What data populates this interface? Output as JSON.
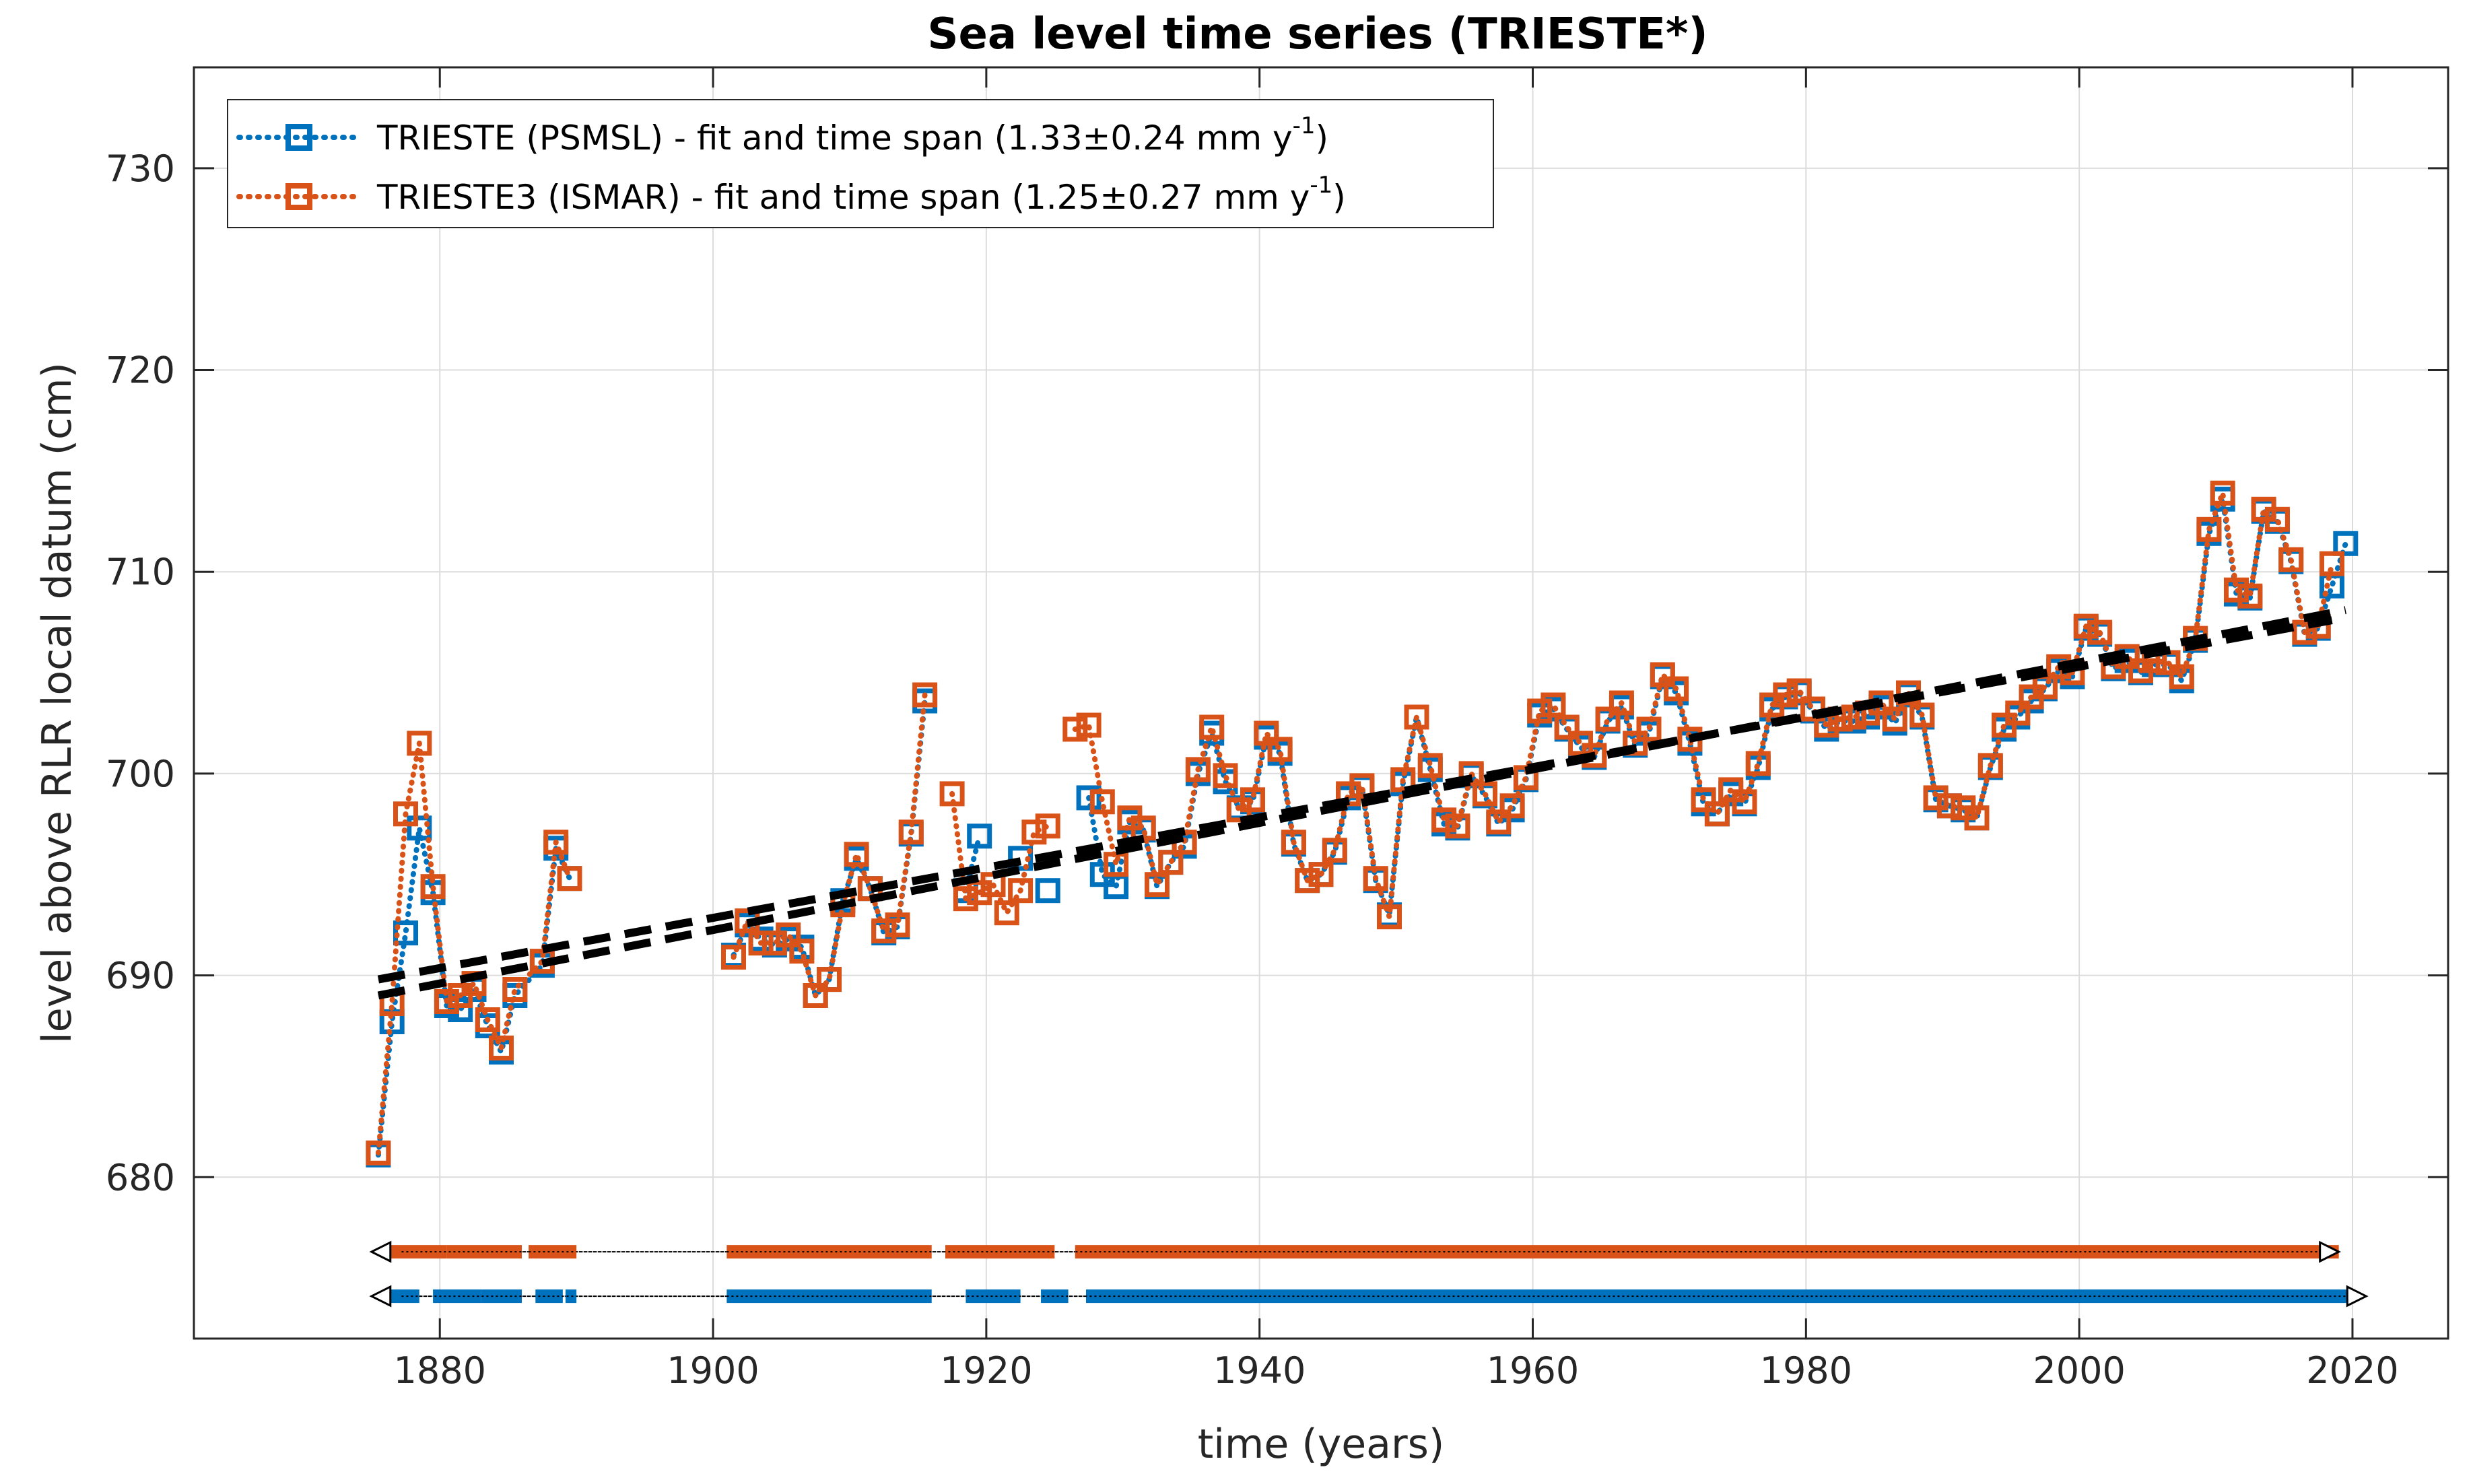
{
  "chart_data": {
    "type": "line",
    "title": "Sea level time series (TRIESTE*)",
    "xlabel": "time (years)",
    "ylabel": "level above RLR local datum (cm)",
    "xlim": [
      1862,
      2027
    ],
    "ylim": [
      672,
      735
    ],
    "xticks": [
      1880,
      1900,
      1920,
      1940,
      1960,
      1980,
      2000,
      2020
    ],
    "yticks": [
      680,
      690,
      700,
      710,
      720,
      730
    ],
    "grid": true,
    "legend_position": "top-left",
    "colors": {
      "psmsl": "#0072BD",
      "ismar": "#D95319",
      "fit": "#000000"
    },
    "series": [
      {
        "key": "psmsl",
        "name": "TRIESTE (PSMSL) - fit and time span",
        "rate": "1.33±0.24",
        "unit_base": "mm y",
        "unit_exp": "-1",
        "x": [
          1875.5,
          1876.5,
          1877.5,
          1878.5,
          1879.5,
          1880.5,
          1881.5,
          1882.5,
          1883.5,
          1884.5,
          1885.5,
          1887.5,
          1888.5,
          1889.5,
          null,
          1901.5,
          1902.5,
          1903.5,
          1904.5,
          1905.5,
          1906.5,
          1907.5,
          1908.5,
          1909.5,
          1910.5,
          1911.5,
          1912.5,
          1913.5,
          1914.5,
          1915.5,
          null,
          1918.5,
          1919.5,
          null,
          1922.5,
          null,
          1924.5,
          null,
          1927.5,
          1928.5,
          1929.5,
          1930.5,
          1931.5,
          1932.5,
          1933.5,
          1934.5,
          1935.5,
          1936.5,
          1937.5,
          1938.5,
          1939.5,
          1940.5,
          1941.5,
          1942.5,
          1943.5,
          1944.5,
          1945.5,
          1946.5,
          1947.5,
          1948.5,
          1949.5,
          1950.5,
          1951.5,
          1952.5,
          1953.5,
          1954.5,
          1955.5,
          1956.5,
          1957.5,
          1958.5,
          1959.5,
          1960.5,
          1961.5,
          1962.5,
          1963.5,
          1964.5,
          1965.5,
          1966.5,
          1967.5,
          1968.5,
          1969.5,
          1970.5,
          1971.5,
          1972.5,
          1973.5,
          1974.5,
          1975.5,
          1976.5,
          1977.5,
          1978.5,
          1979.5,
          1980.5,
          1981.5,
          1982.5,
          1983.5,
          1984.5,
          1985.5,
          1986.5,
          1987.5,
          1988.5,
          1989.5,
          1990.5,
          1991.5,
          1992.5,
          1993.5,
          1994.5,
          1995.5,
          1996.5,
          1997.5,
          1998.5,
          1999.5,
          2000.5,
          2001.5,
          2002.5,
          2003.5,
          2004.5,
          2005.5,
          2006.5,
          2007.5,
          2008.5,
          2009.5,
          2010.5,
          2011.5,
          2012.5,
          2013.5,
          2014.5,
          2015.5,
          2016.5,
          2017.5,
          2018.5,
          2019.5
        ],
        "values": [
          681.1,
          687.7,
          692.1,
          697.3,
          694.1,
          688.5,
          688.3,
          689.3,
          687.5,
          686.2,
          689.0,
          690.5,
          696.3,
          694.8,
          null,
          691.0,
          692.5,
          691.8,
          691.5,
          691.8,
          691.4,
          689.0,
          689.8,
          693.7,
          695.8,
          694.3,
          692.1,
          692.4,
          697.0,
          703.6,
          null,
          694.2,
          696.9,
          null,
          695.8,
          null,
          694.2,
          null,
          698.8,
          695.0,
          694.4,
          697.6,
          697.2,
          694.4,
          695.6,
          696.4,
          700.0,
          702.0,
          699.6,
          698.3,
          698.6,
          701.8,
          701.0,
          696.5,
          694.7,
          695.0,
          696.1,
          698.8,
          699.3,
          694.7,
          693.0,
          699.5,
          702.8,
          700.2,
          697.5,
          697.3,
          699.9,
          698.9,
          697.5,
          698.2,
          699.7,
          702.9,
          703.2,
          702.2,
          701.3,
          700.8,
          702.6,
          703.3,
          701.4,
          702.0,
          704.8,
          704.0,
          701.5,
          698.5,
          698.0,
          699.0,
          698.5,
          700.3,
          703.2,
          703.8,
          704.0,
          703.1,
          702.2,
          702.6,
          702.6,
          702.8,
          703.3,
          702.5,
          703.9,
          702.8,
          698.7,
          698.4,
          698.2,
          697.8,
          700.3,
          702.2,
          702.8,
          703.6,
          704.2,
          705.1,
          704.8,
          707.2,
          706.9,
          705.2,
          705.6,
          705.0,
          705.4,
          705.4,
          704.6,
          706.6,
          711.9,
          713.6,
          708.9,
          708.7,
          713.0,
          712.5,
          710.5,
          706.9,
          707.2,
          709.3,
          711.4
        ]
      },
      {
        "key": "ismar",
        "name": "TRIESTE3 (ISMAR) - fit and time span",
        "rate": "1.25±0.27",
        "unit_base": "mm y",
        "unit_exp": "-1",
        "x": [
          1875.5,
          1876.5,
          1877.5,
          1878.5,
          1879.5,
          1880.5,
          1881.5,
          1882.5,
          1883.5,
          1884.5,
          1885.5,
          1887.5,
          1888.5,
          1889.5,
          null,
          1901.5,
          1902.5,
          1903.5,
          1904.5,
          1905.5,
          1906.5,
          1907.5,
          1908.5,
          1909.5,
          1910.5,
          1911.5,
          1912.5,
          1913.5,
          1914.5,
          1915.5,
          null,
          1917.5,
          1918.5,
          1919.5,
          1920.5,
          1921.5,
          1922.5,
          1923.5,
          1924.5,
          null,
          1926.5,
          1927.5,
          1928.5,
          1929.5,
          1930.5,
          1931.5,
          1932.5,
          1933.5,
          1934.5,
          1935.5,
          1936.5,
          1937.5,
          1938.5,
          1939.5,
          1940.5,
          1941.5,
          1942.5,
          1943.5,
          1944.5,
          1945.5,
          1946.5,
          1947.5,
          1948.5,
          1949.5,
          1950.5,
          1951.5,
          1952.5,
          1953.5,
          1954.5,
          1955.5,
          1956.5,
          1957.5,
          1958.5,
          1959.5,
          1960.5,
          1961.5,
          1962.5,
          1963.5,
          1964.5,
          1965.5,
          1966.5,
          1967.5,
          1968.5,
          1969.5,
          1970.5,
          1971.5,
          1972.5,
          1973.5,
          1974.5,
          1975.5,
          1976.5,
          1977.5,
          1978.5,
          1979.5,
          1980.5,
          1981.5,
          1982.5,
          1983.5,
          1984.5,
          1985.5,
          1986.5,
          1987.5,
          1988.5,
          1989.5,
          1990.5,
          1991.5,
          1992.5,
          1993.5,
          1994.5,
          1995.5,
          1996.5,
          1997.5,
          1998.5,
          1999.5,
          2000.5,
          2001.5,
          2002.5,
          2003.5,
          2004.5,
          2005.5,
          2006.5,
          2007.5,
          2008.5,
          2009.5,
          2010.5,
          2011.5,
          2012.5,
          2013.5,
          2014.5,
          2015.5,
          2016.5,
          2017.5,
          2018.5
        ],
        "values": [
          681.2,
          688.6,
          698.0,
          701.5,
          694.4,
          688.7,
          689.0,
          689.6,
          687.8,
          686.4,
          689.3,
          690.7,
          696.6,
          694.8,
          null,
          690.9,
          692.7,
          691.6,
          691.6,
          692.0,
          691.2,
          689.0,
          689.8,
          693.5,
          696.0,
          694.3,
          692.2,
          692.5,
          697.1,
          703.9,
          null,
          699.0,
          693.8,
          694.1,
          694.5,
          693.1,
          694.2,
          697.1,
          697.4,
          null,
          702.2,
          702.4,
          698.6,
          695.5,
          697.8,
          697.3,
          694.5,
          695.6,
          696.6,
          700.2,
          702.3,
          699.9,
          698.2,
          698.7,
          702.0,
          701.2,
          696.6,
          694.7,
          695.0,
          696.2,
          699.0,
          699.4,
          694.8,
          692.9,
          699.7,
          702.8,
          700.4,
          697.7,
          697.4,
          700.0,
          699.0,
          697.6,
          698.4,
          699.8,
          703.1,
          703.4,
          702.3,
          701.5,
          700.9,
          702.7,
          703.5,
          701.5,
          702.2,
          704.9,
          704.2,
          701.7,
          698.7,
          698.0,
          699.2,
          698.6,
          700.5,
          703.4,
          703.9,
          704.1,
          703.2,
          702.4,
          702.7,
          702.8,
          703.0,
          703.5,
          702.7,
          704.0,
          702.9,
          698.8,
          698.4,
          698.3,
          697.8,
          700.4,
          702.4,
          703.0,
          703.8,
          704.3,
          705.3,
          705.0,
          707.3,
          707.0,
          705.3,
          705.8,
          705.1,
          705.6,
          705.5,
          704.8,
          706.7,
          712.1,
          713.9,
          709.1,
          708.8,
          713.1,
          712.6,
          710.6,
          707.0,
          707.3,
          710.4
        ]
      }
    ],
    "fits": [
      {
        "key": "psmsl",
        "x": [
          1875.5,
          2019.5
        ],
        "y": [
          689.0,
          708.1
        ]
      },
      {
        "key": "ismar",
        "x": [
          1875.5,
          2018.5
        ],
        "y": [
          689.8,
          707.6
        ]
      }
    ],
    "time_spans": [
      {
        "key": "ismar",
        "y": 676.3,
        "range": [
          1875.0,
          2019.0
        ],
        "segments": [
          [
            1876,
            1880.5
          ],
          [
            1880.5,
            1886
          ],
          [
            1886.5,
            1889.5
          ],
          [
            1889.5,
            1890
          ],
          [
            1901,
            1916
          ],
          [
            1917,
            1925
          ],
          [
            1926.5,
            2019
          ]
        ]
      },
      {
        "key": "psmsl",
        "y": 674.1,
        "range": [
          1875.0,
          2021.0
        ],
        "segments": [
          [
            1876,
            1878.5
          ],
          [
            1879.5,
            1883
          ],
          [
            1883,
            1886
          ],
          [
            1887,
            1889
          ],
          [
            1889.2,
            1890
          ],
          [
            1901,
            1916
          ],
          [
            1918.5,
            1922.5
          ],
          [
            1924,
            1926
          ],
          [
            1927.3,
            2020
          ]
        ]
      }
    ]
  }
}
